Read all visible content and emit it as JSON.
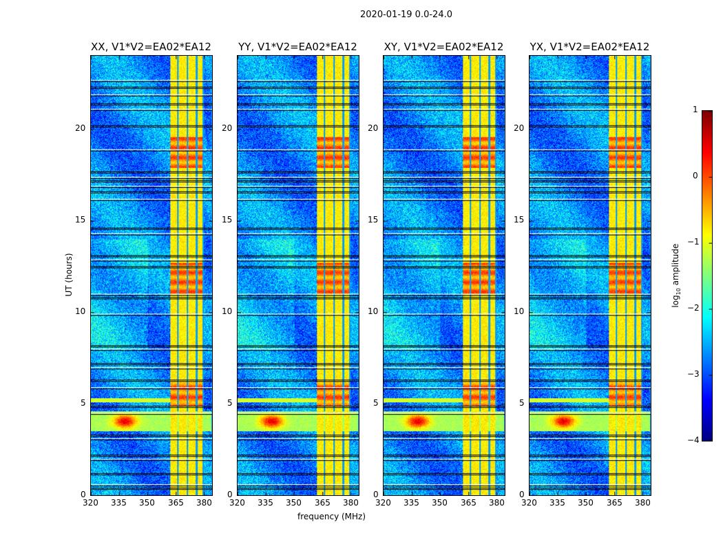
{
  "chart_data": {
    "type": "heatmap",
    "title": "2020-01-19 0.0-24.0",
    "xlabel": "frequency (MHz)",
    "ylabel": "UT (hours)",
    "xlim": [
      320,
      384.4
    ],
    "ylim": [
      0,
      24
    ],
    "xticks": [
      "320",
      "335",
      "350",
      "365",
      "380"
    ],
    "yticks": [
      "0",
      "5",
      "10",
      "15",
      "20"
    ],
    "panels": [
      {
        "title": "XX, V1*V2=EA02*EA12"
      },
      {
        "title": "YY, V1*V2=EA02*EA12"
      },
      {
        "title": "XY, V1*V2=EA02*EA12"
      },
      {
        "title": "YX, V1*V2=EA02*EA12"
      }
    ],
    "colorbar": {
      "label": "log10 amplitude",
      "range": [
        -4,
        1
      ],
      "ticks": [
        "1",
        "0",
        "−1",
        "−2",
        "−3",
        "−4"
      ],
      "colormap": "jet"
    },
    "features": {
      "background_log_amp": -2.7,
      "rfi_band_mhz": [
        362,
        380
      ],
      "rfi_band_log_amp": -0.8,
      "strong_rfi_ut": [
        [
          17.9,
          19.6
        ],
        [
          4.9,
          6.2
        ],
        [
          11,
          12.7
        ]
      ],
      "broadband_event_ut": [
        3.5,
        4.6
      ],
      "broadband_event_peak_mhz": 338,
      "flagged_ut": [
        0.4,
        0.6,
        1.2,
        2.0,
        2.2,
        3.1,
        3.3,
        4.5,
        4.9,
        5.9,
        6.3,
        7.0,
        7.2,
        8.0,
        8.2,
        9.9,
        10.8,
        11.0,
        12.5,
        12.9,
        13.1,
        14.3,
        14.6,
        16.2,
        16.6,
        16.9,
        17.2,
        17.4,
        17.7,
        18.9,
        20.2,
        21.1,
        21.4,
        21.9,
        22.3,
        22.7
      ]
    }
  }
}
